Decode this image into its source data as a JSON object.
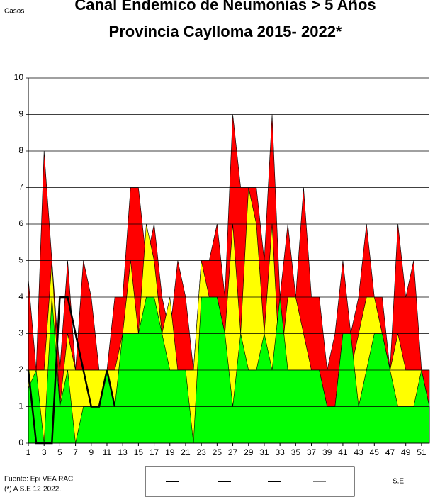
{
  "chart_data": {
    "type": "area",
    "title": "Canal Endemico de Neumonias > 5 Años",
    "subtitle": "Provincia Caylloma 2015- 2022*",
    "y_label": "Casos",
    "x_label": "S.E",
    "source": "Fuente: Epi VEA RAC",
    "note": "(*) A S.E 12-2022.",
    "x": [
      1,
      2,
      3,
      4,
      5,
      6,
      7,
      8,
      9,
      10,
      11,
      12,
      13,
      14,
      15,
      16,
      17,
      18,
      19,
      20,
      21,
      22,
      23,
      24,
      25,
      26,
      27,
      28,
      29,
      30,
      31,
      32,
      33,
      34,
      35,
      36,
      37,
      38,
      39,
      40,
      41,
      42,
      43,
      44,
      45,
      46,
      47,
      48,
      49,
      50,
      51,
      52
    ],
    "xlim": [
      1,
      52
    ],
    "xticks": [
      1,
      3,
      5,
      7,
      9,
      11,
      13,
      15,
      17,
      19,
      21,
      23,
      25,
      27,
      29,
      31,
      33,
      35,
      37,
      39,
      41,
      43,
      45,
      47,
      49,
      51
    ],
    "ylim": [
      0,
      10
    ],
    "yticks": [
      0,
      1,
      2,
      3,
      4,
      5,
      6,
      7,
      8,
      9,
      10
    ],
    "grid": true,
    "series": [
      {
        "color": "#ff0000",
        "values": [
          4.5,
          2,
          8,
          5,
          2,
          5,
          2,
          5,
          4,
          2,
          2,
          4,
          4,
          7,
          7,
          5,
          6,
          4,
          3,
          5,
          4,
          2,
          5,
          5,
          6,
          4,
          9,
          7,
          7,
          7,
          5,
          9,
          4,
          6,
          4,
          7,
          4,
          4,
          2,
          3,
          5,
          3,
          4,
          6,
          4,
          4,
          2,
          6,
          4,
          5,
          2,
          2
        ]
      },
      {
        "color": "#ffff00",
        "values": [
          2,
          2,
          2,
          5,
          1,
          3,
          2,
          2,
          2,
          2,
          2,
          2,
          3,
          5,
          3,
          6,
          5,
          3,
          4,
          2,
          2,
          2,
          5,
          4,
          4,
          3,
          6,
          3,
          7,
          6,
          3,
          6,
          2,
          4,
          4,
          3,
          2,
          2,
          1,
          1,
          3,
          2,
          3,
          4,
          4,
          3,
          2,
          3,
          2,
          2,
          2,
          1
        ]
      },
      {
        "color": "#00ff00",
        "values": [
          1.5,
          2,
          0,
          4,
          1,
          2,
          0,
          1,
          1,
          1,
          2,
          1,
          3,
          3,
          3,
          4,
          4,
          3,
          2,
          2,
          2,
          0,
          4,
          4,
          4,
          3,
          1,
          3,
          2,
          2,
          3,
          2,
          4,
          2,
          2,
          2,
          2,
          2,
          1,
          1,
          3,
          3,
          1,
          2,
          3,
          3,
          2,
          1,
          1,
          1,
          2,
          1
        ]
      },
      {
        "color": "#000000",
        "line": true,
        "values": [
          2,
          0,
          0,
          0,
          4,
          4,
          3,
          2,
          1,
          1,
          2,
          1,
          null,
          null,
          null,
          null,
          null,
          null,
          null,
          null,
          null,
          null,
          null,
          null,
          null,
          null,
          null,
          null,
          null,
          null,
          null,
          null,
          null,
          null,
          null,
          null,
          null,
          null,
          null,
          null,
          null,
          null,
          null,
          null,
          null,
          null,
          null,
          null,
          null,
          null,
          null,
          null
        ]
      }
    ]
  }
}
